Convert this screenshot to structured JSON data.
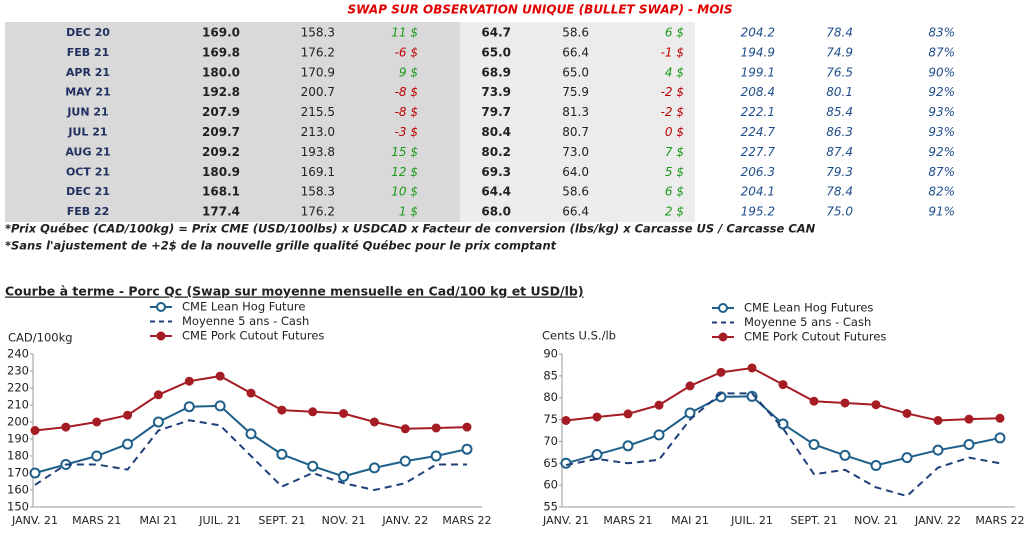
{
  "table": {
    "title": "SWAP SUR OBSERVATION UNIQUE (BULLET SWAP) - MOIS",
    "rows": [
      [
        "DEC 20",
        "169.0",
        "158.3",
        "11 $",
        "64.7",
        "58.6",
        "6 $",
        "204.2",
        "78.4",
        "83%"
      ],
      [
        "FEB 21",
        "169.8",
        "176.2",
        "-6 $",
        "65.0",
        "66.4",
        "-1 $",
        "194.9",
        "74.9",
        "87%"
      ],
      [
        "APR 21",
        "180.0",
        "170.9",
        "9 $",
        "68.9",
        "65.0",
        "4 $",
        "199.1",
        "76.5",
        "90%"
      ],
      [
        "MAY 21",
        "192.8",
        "200.7",
        "-8 $",
        "73.9",
        "75.9",
        "-2 $",
        "208.4",
        "80.1",
        "92%"
      ],
      [
        "JUN 21",
        "207.9",
        "215.5",
        "-8 $",
        "79.7",
        "81.3",
        "-2 $",
        "222.1",
        "85.4",
        "93%"
      ],
      [
        "JUL 21",
        "209.7",
        "213.0",
        "-3 $",
        "80.4",
        "80.7",
        "0 $",
        "224.7",
        "86.3",
        "93%"
      ],
      [
        "AUG 21",
        "209.2",
        "193.8",
        "15 $",
        "80.2",
        "73.0",
        "7 $",
        "227.7",
        "87.4",
        "92%"
      ],
      [
        "OCT 21",
        "180.9",
        "169.1",
        "12 $",
        "69.3",
        "64.0",
        "5 $",
        "206.3",
        "79.3",
        "87%"
      ],
      [
        "DEC 21",
        "168.1",
        "158.3",
        "10 $",
        "64.4",
        "58.6",
        "6 $",
        "204.1",
        "78.4",
        "82%"
      ],
      [
        "FEB 22",
        "177.4",
        "176.2",
        "1 $",
        "68.0",
        "66.4",
        "2 $",
        "195.2",
        "75.0",
        "91%"
      ]
    ],
    "delta_colors": [
      [
        "#1a9a1a",
        "#1a9a1a"
      ],
      [
        "#c00000",
        "#c00000"
      ],
      [
        "#1a9a1a",
        "#1a9a1a"
      ],
      [
        "#c00000",
        "#c00000"
      ],
      [
        "#c00000",
        "#c00000"
      ],
      [
        "#c00000",
        "#c00000"
      ],
      [
        "#1a9a1a",
        "#1a9a1a"
      ],
      [
        "#1a9a1a",
        "#1a9a1a"
      ],
      [
        "#1a9a1a",
        "#1a9a1a"
      ],
      [
        "#1a9a1a",
        "#1a9a1a"
      ]
    ],
    "notes": [
      "*Prix Québec (CAD/100kg) = Prix CME (USD/100lbs) x USDCAD x Facteur de conversion (lbs/kg) x Carcasse US / Carcasse CAN",
      "*Sans l'ajustement de +2$ de la nouvelle grille qualité Québec pour le prix comptant"
    ]
  },
  "section_title": "Courbe à terme - Porc Qc (Swap sur moyenne mensuelle en Cad/100 kg et USD/lb)",
  "chart_data": [
    {
      "type": "line",
      "y_label": "CAD/100kg",
      "categories": [
        "JANV. 21",
        null,
        "MARS 21",
        null,
        "MAI 21",
        null,
        "JUIL. 21",
        null,
        "SEPT. 21",
        null,
        "NOV. 21",
        null,
        "JANV. 22",
        null,
        "MARS 22"
      ],
      "ylim": [
        150,
        240
      ],
      "yticks": [
        150,
        160,
        170,
        180,
        190,
        200,
        210,
        220,
        230,
        240
      ],
      "grid": false,
      "series": [
        {
          "name": "CME Lean Hog Future",
          "color": "#1f5f8b",
          "marker": "open",
          "dashed": false,
          "values": [
            170,
            175,
            180,
            187,
            200,
            209,
            209.5,
            193,
            181,
            174,
            168,
            173,
            177,
            180,
            184
          ]
        },
        {
          "name": "Moyenne 5 ans - Cash",
          "color": "#1f3f7a",
          "marker": "none",
          "dashed": true,
          "values": [
            163,
            175,
            175,
            172,
            195,
            201,
            198,
            180,
            162,
            170,
            164,
            160,
            164,
            175,
            175
          ]
        },
        {
          "name": "CME Pork Cutout Futures",
          "color": "#a51c24",
          "marker": "filled",
          "dashed": false,
          "values": [
            195,
            197,
            200,
            204,
            216,
            224,
            227,
            217,
            207,
            206,
            205,
            200,
            196,
            196.5,
            197
          ]
        }
      ]
    },
    {
      "type": "line",
      "y_label": "Cents U.S./lb",
      "categories": [
        "JANV. 21",
        null,
        "MARS 21",
        null,
        "MAI 21",
        null,
        "JUIL. 21",
        null,
        "SEPT. 21",
        null,
        "NOV. 21",
        null,
        "JANV. 22",
        null,
        "MARS 22"
      ],
      "ylim": [
        55,
        90
      ],
      "yticks": [
        55,
        60,
        65,
        70,
        75,
        80,
        85,
        90
      ],
      "grid": false,
      "series": [
        {
          "name": "CME Lean Hog Futures",
          "color": "#1f5f8b",
          "marker": "open",
          "dashed": false,
          "values": [
            65,
            67,
            69,
            71.5,
            76.5,
            80.2,
            80.3,
            74,
            69.3,
            66.8,
            64.5,
            66.3,
            68,
            69.3,
            70.8
          ]
        },
        {
          "name": "Moyenne 5 ans - Cash",
          "color": "#1f3f7a",
          "marker": "none",
          "dashed": true,
          "values": [
            64.6,
            66,
            65,
            65.8,
            75,
            81,
            81,
            73,
            62.5,
            63.5,
            59.5,
            57.5,
            64,
            66.3,
            65
          ]
        },
        {
          "name": "CME Pork Cutout Futures",
          "color": "#a51c24",
          "marker": "filled",
          "dashed": false,
          "values": [
            74.8,
            75.6,
            76.3,
            78.3,
            82.7,
            85.8,
            86.8,
            83,
            79.2,
            78.8,
            78.4,
            76.4,
            74.8,
            75.1,
            75.3
          ]
        }
      ]
    }
  ]
}
